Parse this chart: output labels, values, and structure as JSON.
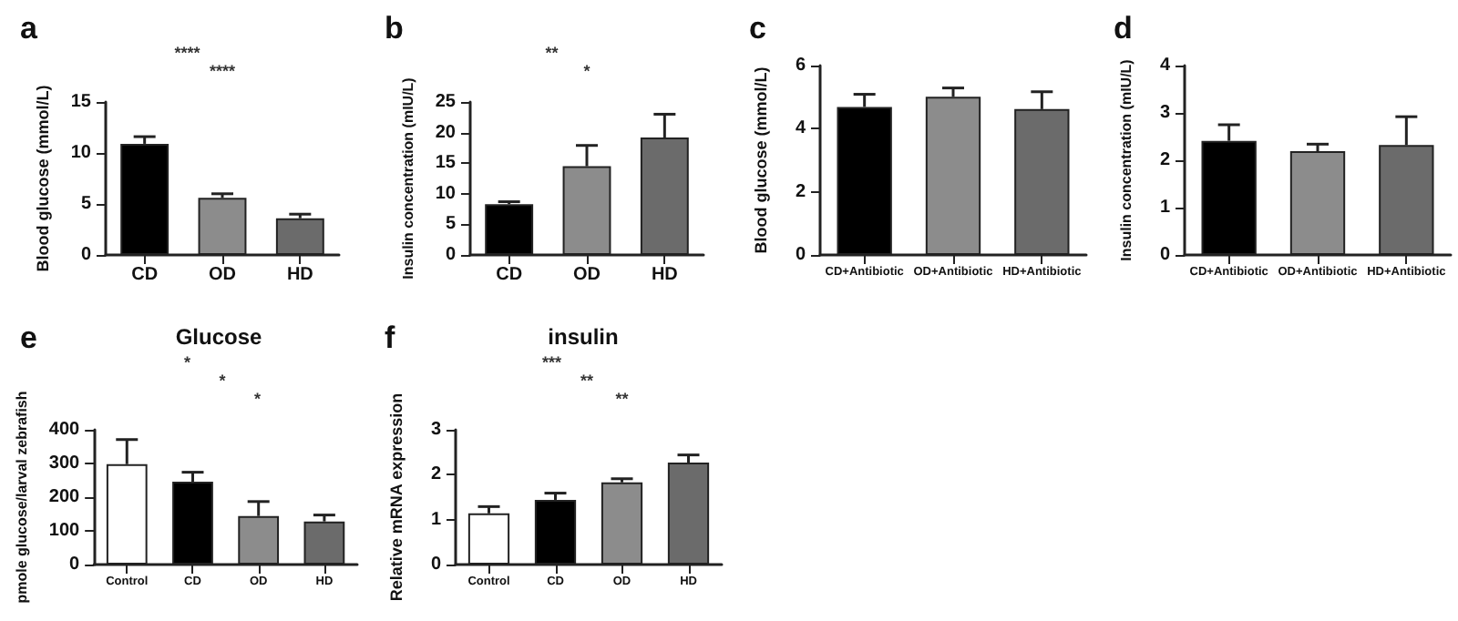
{
  "chart_data": [
    {
      "type": "bar",
      "title": "a",
      "ylabel": "Blood glucose (mmol/L)",
      "categories": [
        "CD",
        "OD",
        "HD"
      ],
      "values": [
        10.9,
        5.6,
        3.6
      ],
      "errors": [
        0.7,
        0.4,
        0.4
      ],
      "colors": [
        "#000000",
        "#8c8c8c",
        "#6b6b6b"
      ],
      "ylim": [
        0,
        15
      ],
      "yticks": [
        0,
        5,
        10,
        15
      ],
      "grid": false,
      "annotations": [
        "****",
        "****"
      ]
    },
    {
      "type": "bar",
      "title": "b",
      "ylabel": "Insulin concentration (mIU/L)",
      "categories": [
        "CD",
        "OD",
        "HD"
      ],
      "values": [
        8.3,
        14.5,
        19.2
      ],
      "errors": [
        0.4,
        3.4,
        3.8
      ],
      "colors": [
        "#000000",
        "#8c8c8c",
        "#6b6b6b"
      ],
      "ylim": [
        0,
        25
      ],
      "yticks": [
        0,
        5,
        10,
        15,
        20,
        25
      ],
      "grid": false,
      "annotations": [
        "**",
        "*"
      ]
    },
    {
      "type": "bar",
      "title": "c",
      "ylabel": "Blood glucose (mmol/L)",
      "categories": [
        "CD+Antibiotic",
        "OD+Antibiotic",
        "HD+Antibiotic"
      ],
      "values": [
        4.69,
        5.01,
        4.62
      ],
      "errors": [
        0.4,
        0.28,
        0.55
      ],
      "colors": [
        "#000000",
        "#8c8c8c",
        "#6b6b6b"
      ],
      "ylim": [
        0,
        6
      ],
      "yticks": [
        0,
        2,
        4,
        6
      ],
      "grid": false
    },
    {
      "type": "bar",
      "title": "d",
      "ylabel": "Insulin concentration (mIU/L)",
      "categories": [
        "CD+Antibiotic",
        "OD+Antibiotic",
        "HD+Antibiotic"
      ],
      "values": [
        2.41,
        2.19,
        2.32
      ],
      "errors": [
        0.34,
        0.15,
        0.6
      ],
      "colors": [
        "#000000",
        "#8c8c8c",
        "#6b6b6b"
      ],
      "ylim": [
        0,
        4
      ],
      "yticks": [
        0,
        1,
        2,
        3,
        4
      ],
      "grid": false
    },
    {
      "type": "bar",
      "title": "e",
      "subtitle": "Glucose",
      "ylabel": "pmole glucose/larval zebrafish",
      "categories": [
        "Control",
        "CD",
        "OD",
        "HD"
      ],
      "values": [
        298,
        246,
        144,
        128
      ],
      "errors": [
        73,
        28,
        43,
        19
      ],
      "colors": [
        "#ffffff",
        "#000000",
        "#8c8c8c",
        "#6b6b6b"
      ],
      "ylim": [
        0,
        400
      ],
      "yticks": [
        0,
        100,
        200,
        300,
        400
      ],
      "grid": false,
      "annotations": [
        "*",
        "*",
        "*"
      ]
    },
    {
      "type": "bar",
      "title": "f",
      "subtitle": "insulin",
      "ylabel": "Relative mRNA expression",
      "categories": [
        "Control",
        "CD",
        "OD",
        "HD"
      ],
      "values": [
        1.14,
        1.44,
        1.83,
        2.27
      ],
      "errors": [
        0.15,
        0.15,
        0.08,
        0.17
      ],
      "colors": [
        "#ffffff",
        "#000000",
        "#8c8c8c",
        "#6b6b6b"
      ],
      "ylim": [
        0,
        3
      ],
      "yticks": [
        0,
        1,
        2,
        3
      ],
      "grid": false,
      "annotations": [
        "***",
        "**",
        "**"
      ]
    }
  ]
}
